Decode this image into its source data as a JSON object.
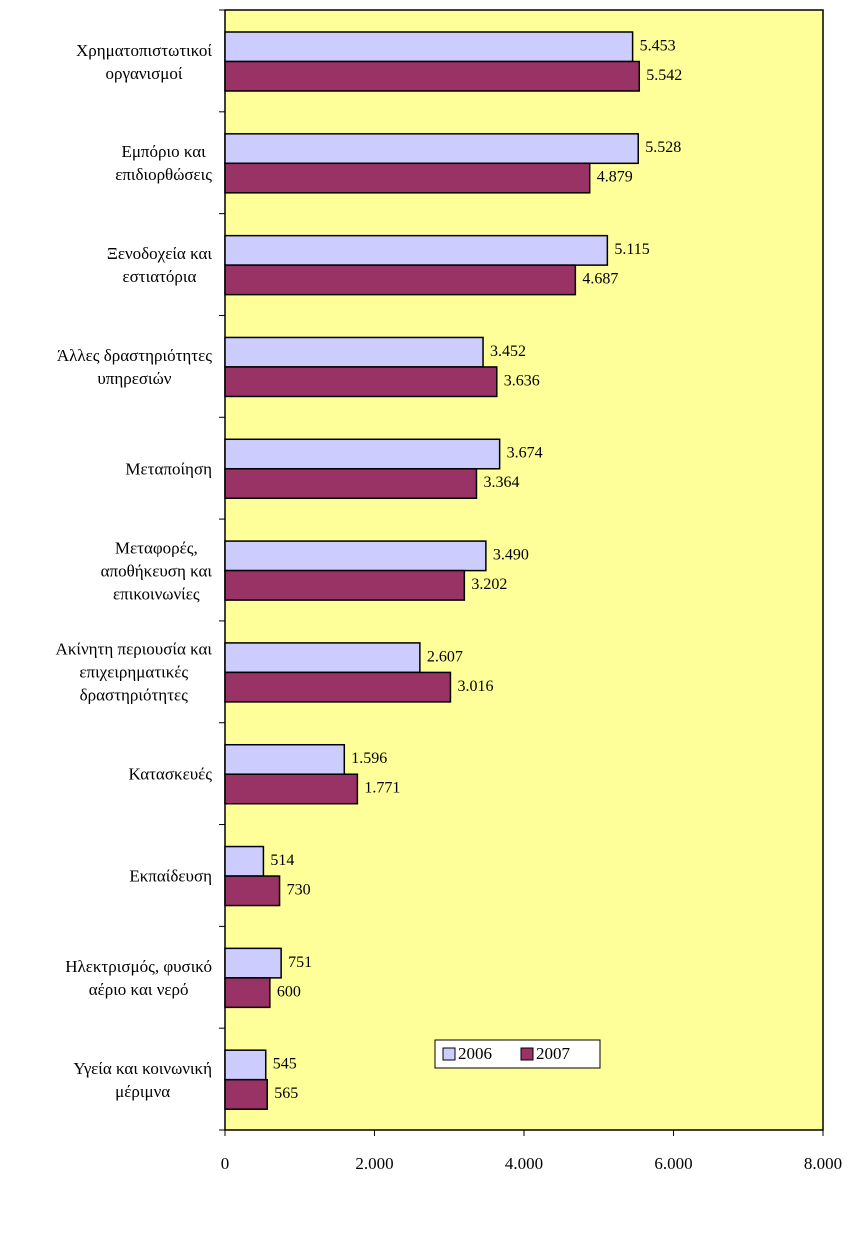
{
  "chart_data": {
    "type": "bar",
    "orientation": "horizontal",
    "categories": [
      "Χρηματοπιστωτικοί\nοργανισμοί",
      "Εμπόριο και\nεπιδιορθώσεις",
      "Ξενοδοχεία και\nεστιατόρια",
      "Άλλες δραστηριότητες\nυπηρεσιών",
      "Μεταποίηση",
      "Μεταφορές,\nαποθήκευση και\nεπικοινωνίες",
      "Ακίνητη περιουσία και\nεπιχειρηματικές\nδραστηριότητες",
      "Κατασκευές",
      "Εκπαίδευση",
      "Ηλεκτρισμός, φυσικό\nαέριο και νερό",
      "Υγεία και κοινωνική\nμέριμνα"
    ],
    "series": [
      {
        "name": "2006",
        "color": "#ccccff",
        "values": [
          5453,
          5528,
          5115,
          3452,
          3674,
          3490,
          2607,
          1596,
          514,
          751,
          545
        ],
        "value_labels": [
          "5.453",
          "5.528",
          "5.115",
          "3.452",
          "3.674",
          "3.490",
          "2.607",
          "1.596",
          "514",
          "751",
          "545"
        ]
      },
      {
        "name": "2007",
        "color": "#993366",
        "values": [
          5542,
          4879,
          4687,
          3636,
          3364,
          3202,
          3016,
          1771,
          730,
          600,
          565
        ],
        "value_labels": [
          "5.542",
          "4.879",
          "4.687",
          "3.636",
          "3.364",
          "3.202",
          "3.016",
          "1.771",
          "730",
          "600",
          "565"
        ]
      }
    ],
    "xlim": [
      0,
      8000
    ],
    "xticks": [
      0,
      {
        "value": 2000,
        "label": "2.000"
      },
      {
        "value": 4000,
        "label": "4.000"
      },
      {
        "value": 6000,
        "label": "6.000"
      },
      {
        "value": 8000,
        "label": "8.000"
      }
    ],
    "plot_background": "#ffff99",
    "legend": "bottom"
  }
}
